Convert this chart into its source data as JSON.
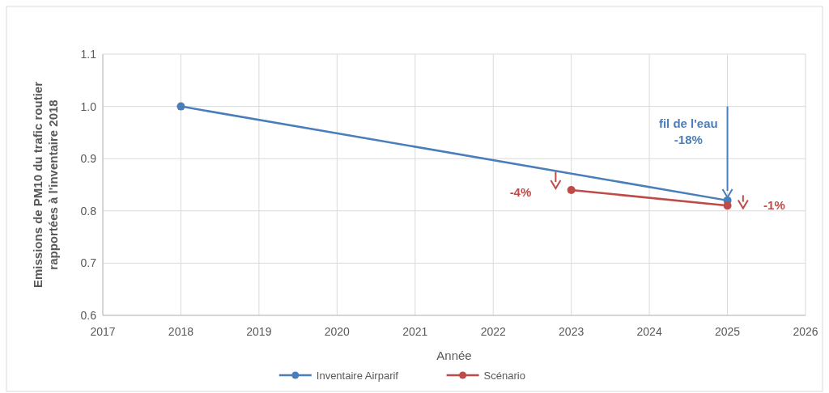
{
  "chart_data": {
    "type": "line",
    "xlabel": "Année",
    "ylabel": "Emissions de PM10 du trafic routier rapportées à l'inventaire 2018",
    "xlim": [
      2017,
      2026
    ],
    "xticks": [
      2017,
      2018,
      2019,
      2020,
      2021,
      2022,
      2023,
      2024,
      2025,
      2026
    ],
    "ylim": [
      0.6,
      1.1
    ],
    "yticks": [
      0.6,
      0.7,
      0.8,
      0.9,
      {
        "value": 1,
        "label": "1.0"
      },
      1.1
    ],
    "grid": true,
    "legend": "bottom",
    "marker": "circle",
    "line_style": "solid",
    "series": [
      {
        "name": "Inventaire Airparif",
        "color": "#4a7ebb",
        "x": [
          2018,
          2025
        ],
        "values": [
          1.0,
          0.82
        ]
      },
      {
        "name": "Scénario",
        "color": "#be4b48",
        "x": [
          2023,
          2025
        ],
        "values": [
          0.84,
          0.81
        ]
      }
    ],
    "annotations": [
      "fil de l'eau",
      "-18%",
      "-4%",
      "-1%"
    ]
  }
}
